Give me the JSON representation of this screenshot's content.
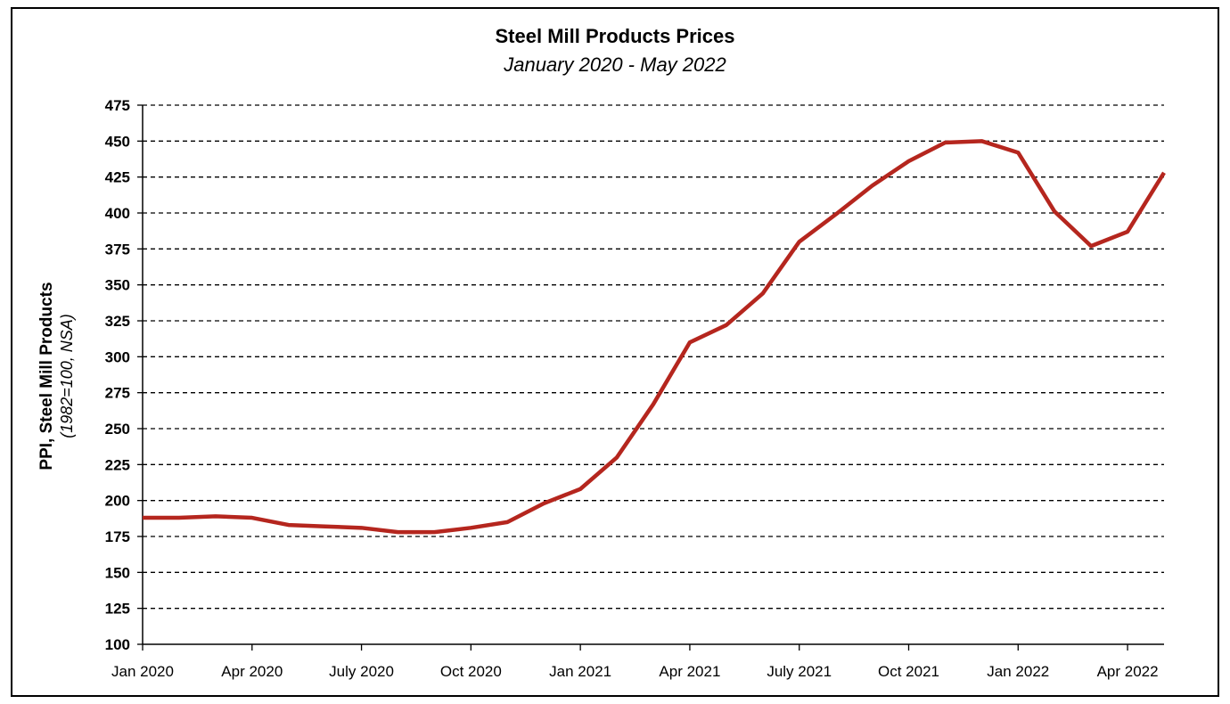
{
  "chart_data": {
    "type": "line",
    "title": "Steel Mill Products Prices",
    "subtitle": "January 2020 - May 2022",
    "ylabel": "PPI, Steel Mill Products",
    "ylabel_note": "(1982=100, NSA)",
    "xlabel": "",
    "ylim": [
      100,
      475
    ],
    "yticks": [
      100,
      125,
      150,
      175,
      200,
      225,
      250,
      275,
      300,
      325,
      350,
      375,
      400,
      425,
      450,
      475
    ],
    "grid": "dashed horizontal",
    "xticks": [
      {
        "label": "Jan 2020",
        "index": 0
      },
      {
        "label": "Apr 2020",
        "index": 3
      },
      {
        "label": "July 2020",
        "index": 6
      },
      {
        "label": "Oct 2020",
        "index": 9
      },
      {
        "label": "Jan 2021",
        "index": 12
      },
      {
        "label": "Apr 2021",
        "index": 15
      },
      {
        "label": "July 2021",
        "index": 18
      },
      {
        "label": "Oct 2021",
        "index": 21
      },
      {
        "label": "Jan 2022",
        "index": 24
      },
      {
        "label": "Apr 2022",
        "index": 27
      }
    ],
    "x": [
      "2020-01",
      "2020-02",
      "2020-03",
      "2020-04",
      "2020-05",
      "2020-06",
      "2020-07",
      "2020-08",
      "2020-09",
      "2020-10",
      "2020-11",
      "2020-12",
      "2021-01",
      "2021-02",
      "2021-03",
      "2021-04",
      "2021-05",
      "2021-06",
      "2021-07",
      "2021-08",
      "2021-09",
      "2021-10",
      "2021-11",
      "2021-12",
      "2022-01",
      "2022-02",
      "2022-03",
      "2022-04",
      "2022-05"
    ],
    "series": [
      {
        "values": [
          188,
          188,
          189,
          188,
          183,
          182,
          181,
          178,
          178,
          181,
          185,
          198,
          208,
          230,
          267,
          310,
          322,
          344,
          380,
          399,
          419,
          436,
          449,
          450,
          442,
          401,
          377,
          387,
          428
        ],
        "color": "#b5261e"
      }
    ]
  }
}
